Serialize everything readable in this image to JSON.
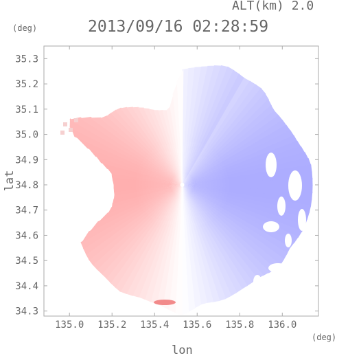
{
  "chart_data": {
    "type": "heatmap",
    "title": "2013/09/16 02:28:59",
    "altitude_label": "ALT(km) 2.0",
    "xlabel": "lon",
    "ylabel": "lat",
    "xunit": "(deg)",
    "yunit": "(deg)",
    "xlim": [
      134.88,
      136.17
    ],
    "ylim": [
      34.28,
      35.35
    ],
    "xticks": [
      135.0,
      135.2,
      135.4,
      135.6,
      135.8,
      136.0
    ],
    "xtick_labels": [
      "135.0",
      "135.2",
      "135.4",
      "135.6",
      "135.8",
      "136.0"
    ],
    "yticks": [
      34.3,
      34.4,
      34.5,
      34.6,
      34.7,
      34.8,
      34.9,
      35.0,
      35.1,
      35.2,
      35.3
    ],
    "ytick_labels": [
      "34.3",
      "34.4",
      "34.5",
      "34.6",
      "34.7",
      "34.8",
      "34.9",
      "35.0",
      "35.1",
      "35.2",
      "35.3"
    ],
    "radar_center": [
      135.53,
      34.8
    ],
    "color_scale": {
      "negative": "#7c7cf0",
      "zero": "#ffffff",
      "positive": "#f07c7c"
    },
    "grid": false
  }
}
